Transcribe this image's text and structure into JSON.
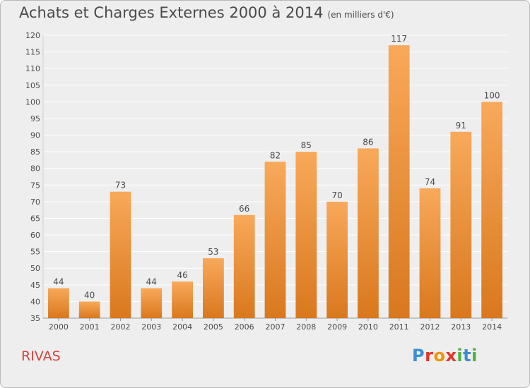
{
  "title": "Achats et Charges Externes 2000 à 2014",
  "subtitle": "(en milliers d'€)",
  "commune": "RIVAS",
  "logo_text": "Proxiti",
  "logo_colors": [
    "#3b8fd4",
    "#e6332a",
    "#f29400",
    "#e6332a",
    "#4fb03c",
    "#3b8fd4",
    "#4fb03c"
  ],
  "colors": {
    "bar_light": "#f8a95a",
    "bar_dark": "#d9781e",
    "grid": "#ffffff",
    "text": "#4a4a4a",
    "commune": "#d8413f"
  },
  "chart_data": {
    "type": "bar",
    "categories": [
      "2000",
      "2001",
      "2002",
      "2003",
      "2004",
      "2005",
      "2006",
      "2007",
      "2008",
      "2009",
      "2010",
      "2011",
      "2012",
      "2013",
      "2014"
    ],
    "values": [
      44,
      40,
      73,
      44,
      46,
      53,
      66,
      82,
      85,
      70,
      86,
      117,
      74,
      91,
      100
    ],
    "ylim": [
      35,
      120
    ],
    "yticks": [
      35,
      40,
      45,
      50,
      55,
      60,
      65,
      70,
      75,
      80,
      85,
      90,
      95,
      100,
      105,
      110,
      115,
      120
    ],
    "grid": true,
    "data_labels": true
  }
}
